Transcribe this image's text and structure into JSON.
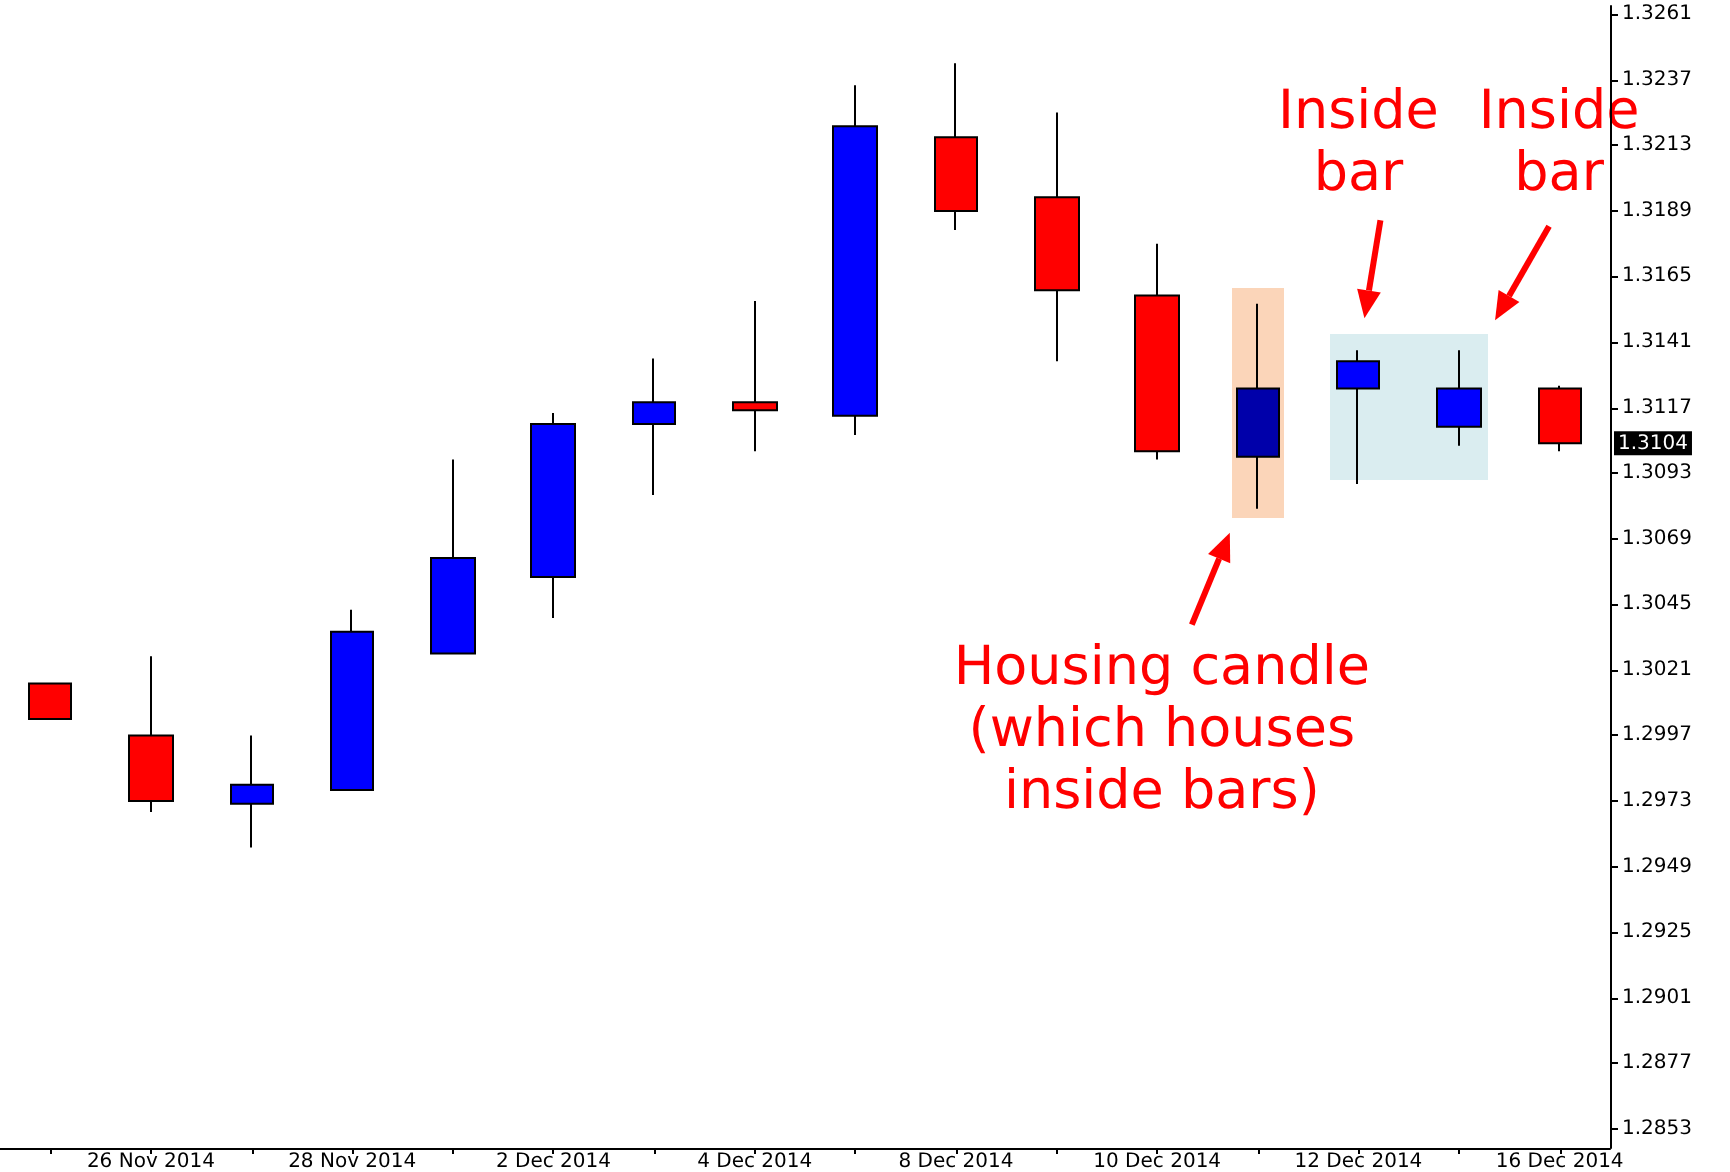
{
  "chart_data": {
    "type": "candlestick",
    "categories": [
      null,
      "26 Nov 2014",
      null,
      "28 Nov 2014",
      null,
      "2 Dec 2014",
      null,
      "4 Dec 2014",
      null,
      "8 Dec 2014",
      null,
      "10 Dec 2014",
      null,
      "12 Dec 2014",
      null,
      "16 Dec 2014"
    ],
    "ohlc": [
      [
        1.3016,
        1.3016,
        1.3003,
        1.3003
      ],
      [
        1.2997,
        1.3026,
        1.2969,
        1.2973
      ],
      [
        1.2972,
        1.2997,
        1.2956,
        1.2979
      ],
      [
        1.2977,
        1.3043,
        1.2977,
        1.3035
      ],
      [
        1.3027,
        1.3098,
        1.3027,
        1.3062
      ],
      [
        1.3055,
        1.3115,
        1.304,
        1.3111
      ],
      [
        1.3111,
        1.3135,
        1.3085,
        1.3119
      ],
      [
        1.3119,
        1.3156,
        1.3101,
        1.3116
      ],
      [
        1.3114,
        1.3235,
        1.3107,
        1.322
      ],
      [
        1.3216,
        1.3243,
        1.3182,
        1.3189
      ],
      [
        1.3194,
        1.3225,
        1.3134,
        1.316
      ],
      [
        1.3158,
        1.3177,
        1.3098,
        1.3101
      ],
      [
        1.3099,
        1.3155,
        1.308,
        1.3124
      ],
      [
        1.3124,
        1.3138,
        1.3089,
        1.3134
      ],
      [
        1.311,
        1.3138,
        1.3103,
        1.3124
      ],
      [
        1.3124,
        1.3125,
        1.3101,
        1.3104
      ]
    ],
    "colors": [
      "#ff0000",
      "#ff0000",
      "#0000ff",
      "#0000ff",
      "#0000ff",
      "#0000ff",
      "#0000ff",
      "#ff0000",
      "#0000ff",
      "#ff0000",
      "#ff0000",
      "#ff0000",
      "#0000aa",
      "#0000ff",
      "#0000ff",
      "#ff0000"
    ],
    "ylim": [
      1.2846,
      1.3264
    ],
    "yticks": [
      1.3261,
      1.3237,
      1.3213,
      1.3189,
      1.3165,
      1.3141,
      1.3117,
      1.3093,
      1.3069,
      1.3045,
      1.3021,
      1.2997,
      1.2973,
      1.2949,
      1.2925,
      1.2901,
      1.2877,
      1.2853
    ],
    "annotations": [
      "Inside\nbar",
      "Inside\nbar",
      "Housing candle\n(which houses\ninside bars)",
      {
        "text": "1.3104",
        "y": 1.3104
      }
    ],
    "grid": false
  }
}
